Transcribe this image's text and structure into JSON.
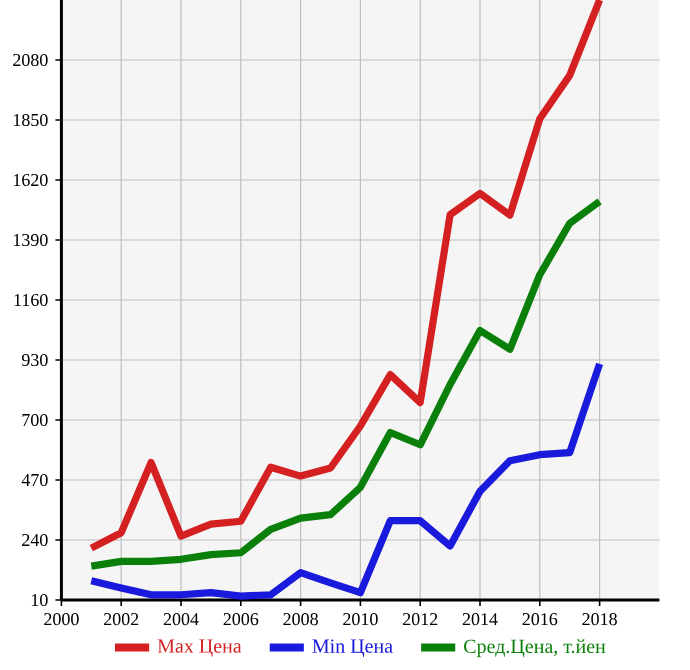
{
  "chart_data": {
    "type": "line",
    "x": [
      2001,
      2002,
      2003,
      2004,
      2005,
      2006,
      2007,
      2008,
      2009,
      2010,
      2011,
      2012,
      2013,
      2014,
      2015,
      2016,
      2017,
      2018
    ],
    "series": [
      {
        "name": "Max Цена",
        "color": "#d42020",
        "values": [
          209,
          268,
          537,
          255,
          301,
          312,
          519,
          485,
          516,
          677,
          874,
          767,
          1487,
          1569,
          1485,
          1855,
          2021,
          2310
        ]
      },
      {
        "name": "Min Цена",
        "color": "#1a1adc",
        "values": [
          84,
          56,
          30,
          30,
          38,
          25,
          30,
          115,
          76,
          38,
          314,
          314,
          217,
          427,
          544,
          567,
          575,
          915
        ]
      },
      {
        "name": "Сред.Цена, т.йен",
        "color": "#0a800a",
        "values": [
          140,
          158,
          158,
          166,
          184,
          191,
          281,
          324,
          337,
          442,
          652,
          605,
          836,
          1043,
          971,
          1257,
          1454,
          1538
        ]
      }
    ],
    "xlim": [
      2000,
      2020
    ],
    "ylim": [
      10,
      2310
    ],
    "xticks": [
      2000,
      2002,
      2004,
      2006,
      2008,
      2010,
      2012,
      2014,
      2016,
      2018
    ],
    "yticks": [
      10,
      240,
      470,
      700,
      930,
      1160,
      1390,
      1620,
      1850,
      2080
    ],
    "grid": true,
    "legend": "bottom",
    "marker": "none",
    "line_style": "solid"
  }
}
